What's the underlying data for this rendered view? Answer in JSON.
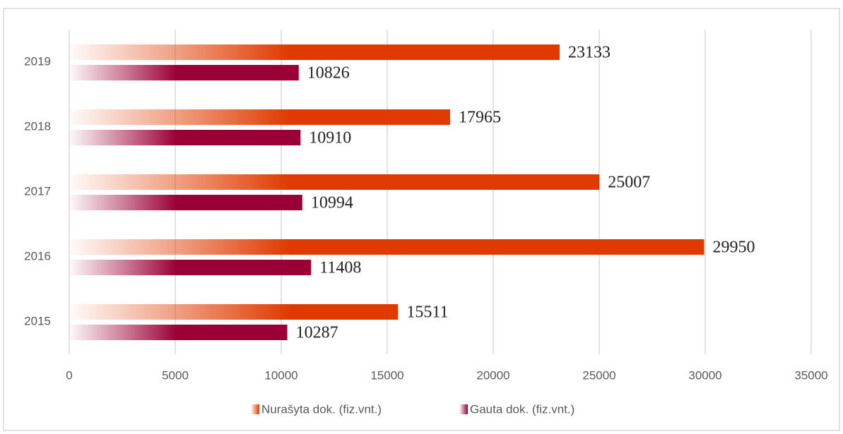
{
  "chart_data": {
    "type": "bar",
    "orientation": "horizontal",
    "categories": [
      "2015",
      "2016",
      "2017",
      "2018",
      "2019"
    ],
    "series": [
      {
        "name": "Nurašyta dok. (fiz.vnt.)",
        "color": "#e03a00",
        "values": [
          15511,
          29950,
          25007,
          17965,
          23133
        ]
      },
      {
        "name": "Gauta dok. (fiz.vnt.)",
        "color": "#9a0036",
        "values": [
          10287,
          11408,
          10994,
          10910,
          10826
        ]
      }
    ],
    "xlim": [
      0,
      35000
    ],
    "xticks": [
      0,
      5000,
      10000,
      15000,
      20000,
      25000,
      30000,
      35000
    ],
    "grid": true,
    "legend": "bottom"
  }
}
